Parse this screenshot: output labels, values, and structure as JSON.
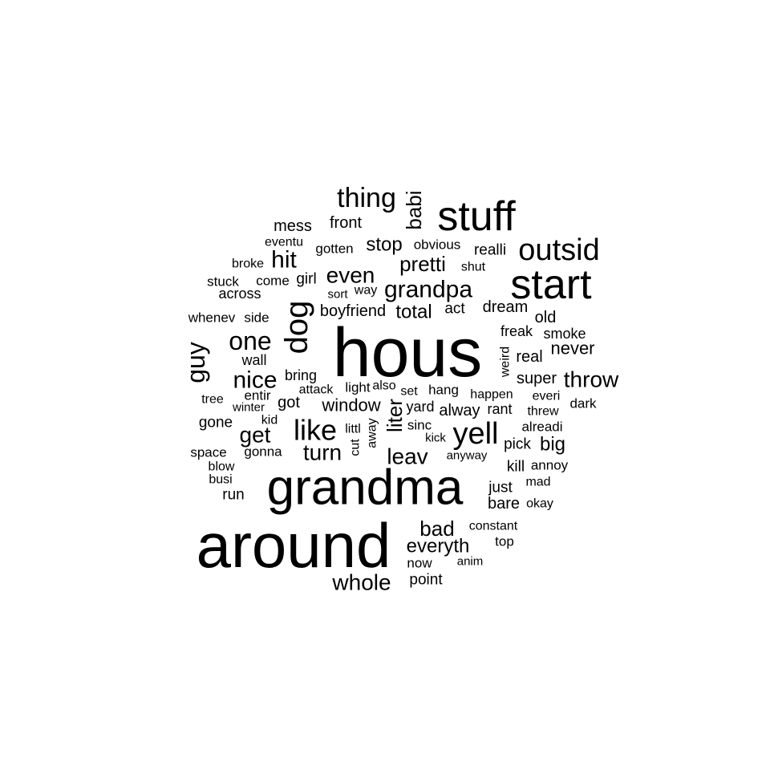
{
  "text_color": "#000000",
  "background_color": "#ffffff",
  "words": [
    "hous",
    "around",
    "grandma",
    "stuff",
    "start",
    "dog",
    "outsid",
    "thing",
    "yell",
    "like",
    "guy",
    "one",
    "nice",
    "grandpa",
    "throw",
    "hit",
    "even",
    "babi",
    "whole",
    "get",
    "turn",
    "leav",
    "liter",
    "pretti",
    "bad",
    "everyth",
    "never",
    "total",
    "stop",
    "window",
    "big",
    "dream",
    "front",
    "mess",
    "boyfriend",
    "smoke",
    "super",
    "real",
    "freak",
    "old",
    "realli",
    "obvious",
    "gotten",
    "eventu",
    "broke",
    "come",
    "girl",
    "stuck",
    "across",
    "sort",
    "way",
    "act",
    "shut",
    "whenev",
    "side",
    "wall",
    "bring",
    "tree",
    "entir",
    "got",
    "attack",
    "light",
    "also",
    "set",
    "hang",
    "happen",
    "everi",
    "dark",
    "winter",
    "kid",
    "yard",
    "alway",
    "rant",
    "threw",
    "gone",
    "littl",
    "away",
    "cut",
    "sinc",
    "kick",
    "alreadi",
    "pick",
    "space",
    "gonna",
    "anyway",
    "kill",
    "annoy",
    "blow",
    "busi",
    "run",
    "just",
    "mad",
    "bare",
    "okay",
    "constant",
    "top",
    "now",
    "anim",
    "point",
    "weird"
  ]
}
